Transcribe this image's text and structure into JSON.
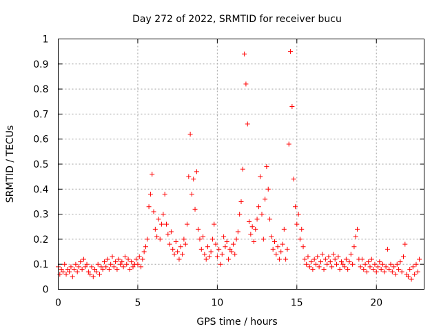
{
  "chart_data": {
    "type": "scatter",
    "title": "Day 272 of 2022, SRMTID for receiver bucu",
    "xlabel": "GPS time / hours",
    "ylabel": "SRMTID / TECUs",
    "xlim": [
      0,
      23
    ],
    "ylim": [
      0,
      1
    ],
    "xticks": [
      0,
      5,
      10,
      15,
      20
    ],
    "xtick_labels": [
      "0",
      "5",
      "10",
      "15",
      "20"
    ],
    "yticks": [
      0,
      0.1,
      0.2,
      0.3,
      0.4,
      0.5,
      0.6,
      0.7,
      0.8,
      0.9,
      1
    ],
    "ytick_labels": [
      "0",
      "0.1",
      "0.2",
      "0.3",
      "0.4",
      "0.5",
      "0.6",
      "0.7",
      "0.8",
      "0.9",
      "1"
    ],
    "grid": true,
    "marker": "+",
    "series": [
      {
        "name": "bucu",
        "color": "#ff0000",
        "points": [
          [
            0.0,
            0.09
          ],
          [
            0.1,
            0.06
          ],
          [
            0.2,
            0.08
          ],
          [
            0.3,
            0.07
          ],
          [
            0.4,
            0.1
          ],
          [
            0.5,
            0.06
          ],
          [
            0.6,
            0.08
          ],
          [
            0.7,
            0.07
          ],
          [
            0.8,
            0.09
          ],
          [
            0.9,
            0.05
          ],
          [
            1.0,
            0.08
          ],
          [
            1.1,
            0.1
          ],
          [
            1.2,
            0.07
          ],
          [
            1.3,
            0.09
          ],
          [
            1.4,
            0.11
          ],
          [
            1.5,
            0.08
          ],
          [
            1.6,
            0.12
          ],
          [
            1.7,
            0.09
          ],
          [
            1.8,
            0.1
          ],
          [
            1.9,
            0.07
          ],
          [
            2.0,
            0.06
          ],
          [
            2.1,
            0.09
          ],
          [
            2.2,
            0.05
          ],
          [
            2.3,
            0.08
          ],
          [
            2.4,
            0.07
          ],
          [
            2.5,
            0.1
          ],
          [
            2.6,
            0.06
          ],
          [
            2.7,
            0.09
          ],
          [
            2.8,
            0.08
          ],
          [
            2.9,
            0.11
          ],
          [
            3.0,
            0.09
          ],
          [
            3.1,
            0.12
          ],
          [
            3.2,
            0.08
          ],
          [
            3.3,
            0.1
          ],
          [
            3.4,
            0.13
          ],
          [
            3.5,
            0.09
          ],
          [
            3.6,
            0.11
          ],
          [
            3.7,
            0.08
          ],
          [
            3.8,
            0.12
          ],
          [
            3.9,
            0.1
          ],
          [
            4.0,
            0.11
          ],
          [
            4.1,
            0.09
          ],
          [
            4.2,
            0.13
          ],
          [
            4.3,
            0.1
          ],
          [
            4.4,
            0.12
          ],
          [
            4.5,
            0.08
          ],
          [
            4.6,
            0.11
          ],
          [
            4.7,
            0.09
          ],
          [
            4.8,
            0.1
          ],
          [
            4.9,
            0.12
          ],
          [
            5.0,
            0.1
          ],
          [
            5.1,
            0.13
          ],
          [
            5.2,
            0.09
          ],
          [
            5.3,
            0.12
          ],
          [
            5.4,
            0.15
          ],
          [
            5.5,
            0.17
          ],
          [
            5.6,
            0.2
          ],
          [
            5.7,
            0.33
          ],
          [
            5.8,
            0.38
          ],
          [
            5.9,
            0.46
          ],
          [
            6.0,
            0.31
          ],
          [
            6.1,
            0.24
          ],
          [
            6.2,
            0.21
          ],
          [
            6.3,
            0.28
          ],
          [
            6.4,
            0.2
          ],
          [
            6.5,
            0.26
          ],
          [
            6.6,
            0.3
          ],
          [
            6.7,
            0.38
          ],
          [
            6.8,
            0.26
          ],
          [
            6.9,
            0.22
          ],
          [
            7.0,
            0.18
          ],
          [
            7.1,
            0.23
          ],
          [
            7.2,
            0.16
          ],
          [
            7.3,
            0.14
          ],
          [
            7.4,
            0.19
          ],
          [
            7.5,
            0.15
          ],
          [
            7.6,
            0.12
          ],
          [
            7.7,
            0.17
          ],
          [
            7.8,
            0.14
          ],
          [
            7.9,
            0.2
          ],
          [
            8.0,
            0.18
          ],
          [
            8.1,
            0.26
          ],
          [
            8.2,
            0.45
          ],
          [
            8.3,
            0.62
          ],
          [
            8.4,
            0.38
          ],
          [
            8.5,
            0.44
          ],
          [
            8.6,
            0.32
          ],
          [
            8.7,
            0.47
          ],
          [
            8.8,
            0.24
          ],
          [
            8.9,
            0.2
          ],
          [
            9.0,
            0.16
          ],
          [
            9.1,
            0.21
          ],
          [
            9.2,
            0.14
          ],
          [
            9.3,
            0.12
          ],
          [
            9.4,
            0.17
          ],
          [
            9.5,
            0.13
          ],
          [
            9.6,
            0.15
          ],
          [
            9.7,
            0.2
          ],
          [
            9.8,
            0.26
          ],
          [
            9.9,
            0.18
          ],
          [
            10.0,
            0.13
          ],
          [
            10.1,
            0.16
          ],
          [
            10.2,
            0.1
          ],
          [
            10.3,
            0.14
          ],
          [
            10.4,
            0.21
          ],
          [
            10.5,
            0.17
          ],
          [
            10.6,
            0.19
          ],
          [
            10.7,
            0.12
          ],
          [
            10.8,
            0.16
          ],
          [
            10.9,
            0.15
          ],
          [
            11.0,
            0.18
          ],
          [
            11.1,
            0.14
          ],
          [
            11.2,
            0.2
          ],
          [
            11.3,
            0.23
          ],
          [
            11.4,
            0.3
          ],
          [
            11.5,
            0.35
          ],
          [
            11.6,
            0.48
          ],
          [
            11.7,
            0.94
          ],
          [
            11.8,
            0.82
          ],
          [
            11.9,
            0.66
          ],
          [
            12.0,
            0.27
          ],
          [
            12.1,
            0.22
          ],
          [
            12.2,
            0.25
          ],
          [
            12.3,
            0.19
          ],
          [
            12.4,
            0.24
          ],
          [
            12.5,
            0.28
          ],
          [
            12.6,
            0.33
          ],
          [
            12.7,
            0.45
          ],
          [
            12.8,
            0.3
          ],
          [
            12.9,
            0.2
          ],
          [
            13.0,
            0.36
          ],
          [
            13.1,
            0.49
          ],
          [
            13.2,
            0.4
          ],
          [
            13.3,
            0.28
          ],
          [
            13.4,
            0.21
          ],
          [
            13.5,
            0.16
          ],
          [
            13.6,
            0.19
          ],
          [
            13.7,
            0.14
          ],
          [
            13.8,
            0.17
          ],
          [
            13.9,
            0.12
          ],
          [
            14.0,
            0.15
          ],
          [
            14.1,
            0.18
          ],
          [
            14.2,
            0.24
          ],
          [
            14.3,
            0.12
          ],
          [
            14.4,
            0.16
          ],
          [
            14.5,
            0.58
          ],
          [
            14.6,
            0.95
          ],
          [
            14.7,
            0.73
          ],
          [
            14.8,
            0.44
          ],
          [
            14.9,
            0.33
          ],
          [
            15.0,
            0.26
          ],
          [
            15.1,
            0.3
          ],
          [
            15.2,
            0.2
          ],
          [
            15.3,
            0.24
          ],
          [
            15.4,
            0.17
          ],
          [
            15.5,
            0.12
          ],
          [
            15.6,
            0.1
          ],
          [
            15.7,
            0.13
          ],
          [
            15.8,
            0.09
          ],
          [
            15.9,
            0.11
          ],
          [
            16.0,
            0.08
          ],
          [
            16.1,
            0.12
          ],
          [
            16.2,
            0.1
          ],
          [
            16.3,
            0.13
          ],
          [
            16.4,
            0.09
          ],
          [
            16.5,
            0.11
          ],
          [
            16.6,
            0.14
          ],
          [
            16.7,
            0.08
          ],
          [
            16.8,
            0.12
          ],
          [
            16.9,
            0.1
          ],
          [
            17.0,
            0.13
          ],
          [
            17.1,
            0.11
          ],
          [
            17.2,
            0.09
          ],
          [
            17.3,
            0.14
          ],
          [
            17.4,
            0.12
          ],
          [
            17.5,
            0.1
          ],
          [
            17.6,
            0.13
          ],
          [
            17.7,
            0.08
          ],
          [
            17.8,
            0.11
          ],
          [
            17.9,
            0.1
          ],
          [
            18.0,
            0.09
          ],
          [
            18.1,
            0.12
          ],
          [
            18.2,
            0.08
          ],
          [
            18.3,
            0.11
          ],
          [
            18.4,
            0.14
          ],
          [
            18.5,
            0.1
          ],
          [
            18.6,
            0.17
          ],
          [
            18.7,
            0.21
          ],
          [
            18.8,
            0.24
          ],
          [
            18.9,
            0.12
          ],
          [
            19.0,
            0.09
          ],
          [
            19.1,
            0.12
          ],
          [
            19.2,
            0.08
          ],
          [
            19.3,
            0.1
          ],
          [
            19.4,
            0.07
          ],
          [
            19.5,
            0.11
          ],
          [
            19.6,
            0.09
          ],
          [
            19.7,
            0.12
          ],
          [
            19.8,
            0.08
          ],
          [
            19.9,
            0.1
          ],
          [
            20.0,
            0.07
          ],
          [
            20.1,
            0.09
          ],
          [
            20.2,
            0.11
          ],
          [
            20.3,
            0.08
          ],
          [
            20.4,
            0.1
          ],
          [
            20.5,
            0.07
          ],
          [
            20.6,
            0.09
          ],
          [
            20.7,
            0.16
          ],
          [
            20.8,
            0.08
          ],
          [
            20.9,
            0.1
          ],
          [
            21.0,
            0.07
          ],
          [
            21.1,
            0.09
          ],
          [
            21.2,
            0.06
          ],
          [
            21.3,
            0.1
          ],
          [
            21.4,
            0.08
          ],
          [
            21.5,
            0.11
          ],
          [
            21.6,
            0.07
          ],
          [
            21.7,
            0.13
          ],
          [
            21.8,
            0.18
          ],
          [
            21.9,
            0.06
          ],
          [
            22.0,
            0.05
          ],
          [
            22.1,
            0.08
          ],
          [
            22.2,
            0.04
          ],
          [
            22.3,
            0.09
          ],
          [
            22.4,
            0.06
          ],
          [
            22.5,
            0.1
          ],
          [
            22.6,
            0.07
          ],
          [
            22.7,
            0.12
          ]
        ]
      }
    ]
  }
}
